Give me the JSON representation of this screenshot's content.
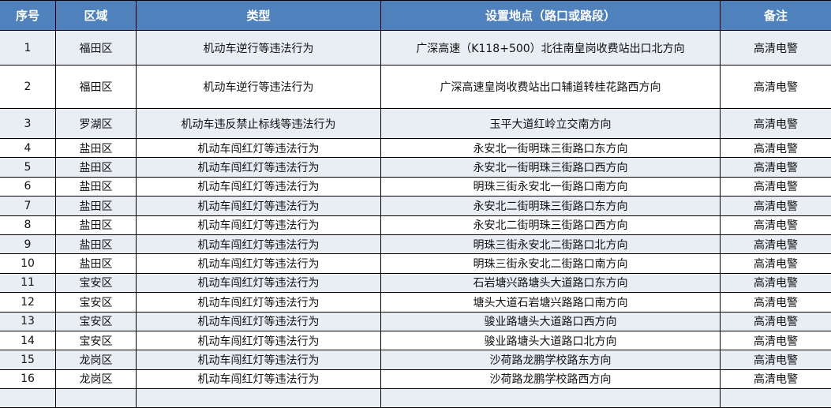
{
  "headers": [
    "序号",
    "区域",
    "类型",
    "设置地点（路口或路段）",
    "备注"
  ],
  "rows": [
    [
      "1",
      "福田区",
      "机动车逆行等违法行为",
      "广深高速（K118+500）北往南皇岗收费站出口北方向",
      "高清电警"
    ],
    [
      "2",
      "福田区",
      "机动车逆行等违法行为",
      "广深高速皇岗收费站出口辅道转桂花路西方向",
      "高清电警"
    ],
    [
      "3",
      "罗湖区",
      "机动车违反禁止标线等违法行为",
      "玉平大道红岭立交南方向",
      "高清电警"
    ],
    [
      "4",
      "盐田区",
      "机动车闯红灯等违法行为",
      "永安北一街明珠三街路口东方向",
      "高清电警"
    ],
    [
      "5",
      "盐田区",
      "机动车闯红灯等违法行为",
      "永安北一街明珠三街路口西方向",
      "高清电警"
    ],
    [
      "6",
      "盐田区",
      "机动车闯红灯等违法行为",
      "明珠三街永安北一街路口南方向",
      "高清电警"
    ],
    [
      "7",
      "盐田区",
      "机动车闯红灯等违法行为",
      "永安北二街明珠三街路口东方向",
      "高清电警"
    ],
    [
      "8",
      "盐田区",
      "机动车闯红灯等违法行为",
      "永安北二街明珠三街路口西方向",
      "高清电警"
    ],
    [
      "9",
      "盐田区",
      "机动车闯红灯等违法行为",
      "明珠三街永安北二街路口北方向",
      "高清电警"
    ],
    [
      "10",
      "盐田区",
      "机动车闯红灯等违法行为",
      "明珠三街永安北二街路口南方向",
      "高清电警"
    ],
    [
      "11",
      "宝安区",
      "机动车闯红灯等违法行为",
      "石岩塘兴路塘头大道路口东方向",
      "高清电警"
    ],
    [
      "12",
      "宝安区",
      "机动车闯红灯等违法行为",
      "塘头大道石岩塘兴路路口南方向",
      "高清电警"
    ],
    [
      "13",
      "宝安区",
      "机动车闯红灯等违法行为",
      "骏业路塘头大道路口西方向",
      "高清电警"
    ],
    [
      "14",
      "宝安区",
      "机动车闯红灯等违法行为",
      "骏业路塘头大道路口北方向",
      "高清电警"
    ],
    [
      "15",
      "龙岗区",
      "机动车闯红灯等违法行为",
      "沙荷路龙鹏学校路东方向",
      "高清电警"
    ],
    [
      "16",
      "龙岗区",
      "机动车闯红灯等违法行为",
      "沙荷路龙鹏学校路西方向",
      "高清电警"
    ]
  ],
  "colors": {
    "header_bg": "#4f81bd",
    "alt_row_bg": "#e9edf4"
  }
}
